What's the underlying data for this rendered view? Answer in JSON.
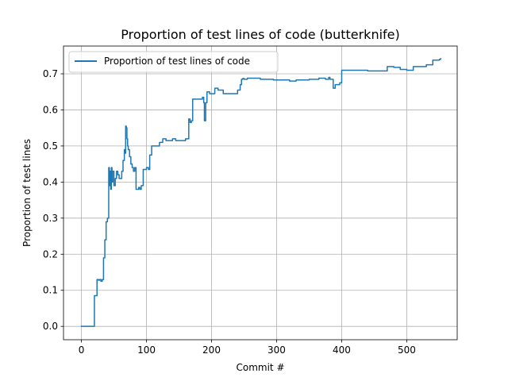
{
  "chart_data": {
    "type": "line",
    "title": "Proportion of test lines of code (butterknife)",
    "xlabel": "Commit #",
    "ylabel": "Proportion of test lines",
    "xlim": [
      -27.5,
      577.5
    ],
    "ylim": [
      -0.037,
      0.777
    ],
    "xticks": [
      0,
      100,
      200,
      300,
      400,
      500
    ],
    "yticks": [
      0.0,
      0.1,
      0.2,
      0.3,
      0.4,
      0.5,
      0.6,
      0.7
    ],
    "xtick_labels": [
      "0",
      "100",
      "200",
      "300",
      "400",
      "500"
    ],
    "ytick_labels": [
      "0.0",
      "0.1",
      "0.2",
      "0.3",
      "0.4",
      "0.5",
      "0.6",
      "0.7"
    ],
    "grid": true,
    "legend_position": "upper-left",
    "series": [
      {
        "name": "Proportion of test lines of code",
        "color": "#1f77b4",
        "x": [
          0,
          18,
          20,
          22,
          24,
          26,
          28,
          30,
          32,
          34,
          36,
          38,
          40,
          42,
          43,
          44,
          45,
          46,
          47,
          48,
          50,
          52,
          54,
          56,
          58,
          60,
          62,
          64,
          66,
          67,
          68,
          69,
          70,
          71,
          72,
          74,
          76,
          78,
          80,
          82,
          84,
          86,
          88,
          90,
          92,
          95,
          100,
          103,
          105,
          108,
          110,
          112,
          115,
          120,
          125,
          130,
          135,
          140,
          145,
          150,
          155,
          160,
          165,
          167,
          169,
          171,
          174,
          178,
          183,
          186,
          188,
          189,
          191,
          193,
          197,
          201,
          205,
          210,
          214,
          218,
          222,
          226,
          230,
          235,
          240,
          244,
          246,
          248,
          250,
          255,
          260,
          265,
          275,
          285,
          295,
          300,
          310,
          320,
          330,
          340,
          350,
          360,
          365,
          370,
          375,
          380,
          382,
          384,
          387,
          390,
          393,
          397,
          400,
          403,
          410,
          420,
          430,
          440,
          450,
          460,
          465,
          470,
          480,
          490,
          495,
          500,
          505,
          510,
          520,
          530,
          540,
          545,
          550,
          552
        ],
        "y": [
          0.0,
          0.0,
          0.085,
          0.085,
          0.13,
          0.128,
          0.13,
          0.125,
          0.13,
          0.19,
          0.24,
          0.29,
          0.3,
          0.44,
          0.39,
          0.43,
          0.38,
          0.44,
          0.4,
          0.43,
          0.39,
          0.41,
          0.43,
          0.42,
          0.41,
          0.41,
          0.43,
          0.46,
          0.49,
          0.48,
          0.555,
          0.55,
          0.52,
          0.5,
          0.49,
          0.47,
          0.45,
          0.44,
          0.43,
          0.44,
          0.38,
          0.38,
          0.385,
          0.38,
          0.39,
          0.435,
          0.44,
          0.435,
          0.475,
          0.5,
          0.5,
          0.5,
          0.5,
          0.51,
          0.52,
          0.515,
          0.515,
          0.52,
          0.515,
          0.515,
          0.515,
          0.52,
          0.575,
          0.565,
          0.57,
          0.63,
          0.63,
          0.63,
          0.63,
          0.635,
          0.62,
          0.57,
          0.62,
          0.65,
          0.645,
          0.645,
          0.66,
          0.655,
          0.655,
          0.645,
          0.645,
          0.645,
          0.645,
          0.645,
          0.655,
          0.67,
          0.685,
          0.687,
          0.685,
          0.688,
          0.688,
          0.688,
          0.685,
          0.685,
          0.683,
          0.683,
          0.683,
          0.68,
          0.683,
          0.683,
          0.685,
          0.685,
          0.688,
          0.688,
          0.685,
          0.69,
          0.685,
          0.685,
          0.66,
          0.67,
          0.67,
          0.675,
          0.71,
          0.71,
          0.71,
          0.71,
          0.71,
          0.708,
          0.708,
          0.708,
          0.708,
          0.72,
          0.718,
          0.712,
          0.712,
          0.71,
          0.71,
          0.72,
          0.72,
          0.725,
          0.738,
          0.738,
          0.74,
          0.742
        ]
      }
    ]
  }
}
